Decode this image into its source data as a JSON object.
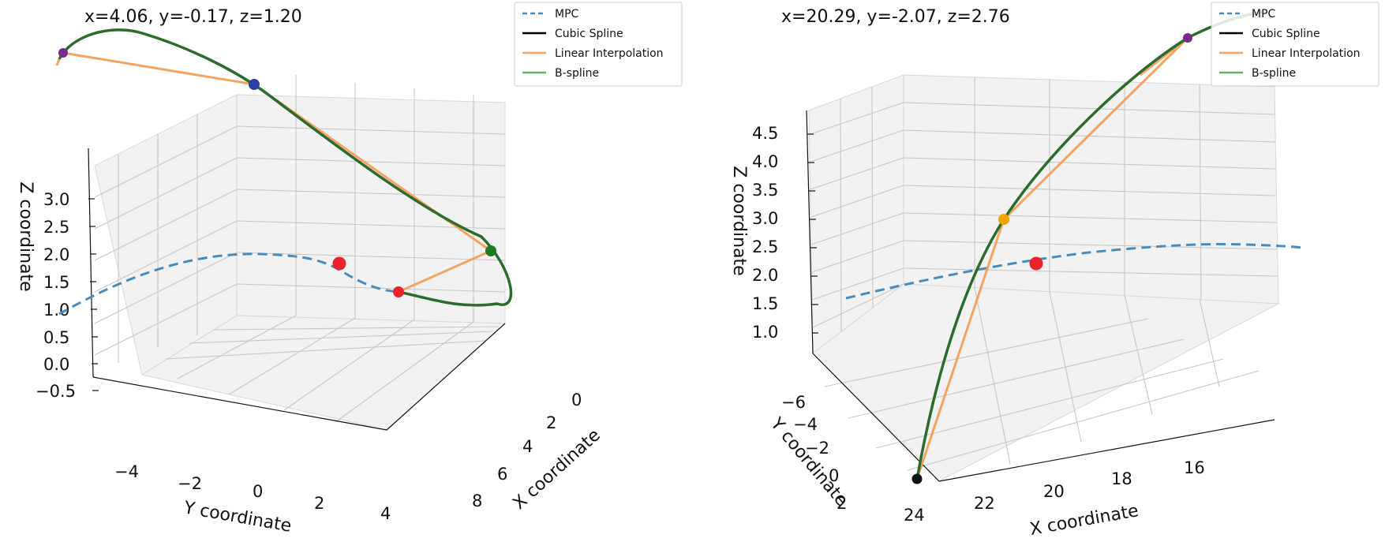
{
  "chart_data": [
    {
      "type": "line-3d",
      "coord_readout": "x=4.06, y=-0.17, z=1.20",
      "xlabel": "X coordinate",
      "ylabel": "Y coordinate",
      "zlabel": "Z coordinate",
      "x_ticks": [
        "0",
        "2",
        "4",
        "6",
        "8"
      ],
      "y_ticks": [
        "−4",
        "−2",
        "0",
        "2",
        "4"
      ],
      "z_ticks": [
        "3.0",
        "2.5",
        "2.0",
        "1.5",
        "1.0",
        "0.5",
        "0.0",
        "−0.5"
      ],
      "grid": true,
      "legend_position": "top-right",
      "legend": [
        {
          "label": "MPC",
          "color": "#4a8bbe",
          "style": "dashed"
        },
        {
          "label": "Cubic Spline",
          "color": "#000000",
          "style": "solid"
        },
        {
          "label": "Linear Interpolation",
          "color": "#f4a460",
          "style": "solid"
        },
        {
          "label": "B-spline",
          "color": "#5cb85c",
          "style": "solid"
        }
      ],
      "waypoints": [
        {
          "name": "start",
          "color": "#e8232a"
        },
        {
          "name": "waypoint-green",
          "color": "#1e7b1e"
        },
        {
          "name": "waypoint-blue",
          "color": "#2c3fa0"
        },
        {
          "name": "waypoint-purple",
          "color": "#7a2a8a"
        }
      ],
      "current_position": {
        "x": 4.06,
        "y": -0.17,
        "z": 1.2,
        "color": "#e8232a"
      }
    },
    {
      "type": "line-3d",
      "coord_readout": "x=20.29, y=-2.07, z=2.76",
      "xlabel": "X coordinate",
      "ylabel": "Y coordinate",
      "zlabel": "Z coordinate",
      "x_ticks": [
        "24",
        "22",
        "20",
        "18",
        "16"
      ],
      "y_ticks": [
        "−6",
        "−4",
        "−2",
        "0",
        "2"
      ],
      "z_ticks": [
        "4.5",
        "4.0",
        "3.5",
        "3.0",
        "2.5",
        "2.0",
        "1.5",
        "1.0"
      ],
      "grid": true,
      "legend_position": "top-right",
      "legend": [
        {
          "label": "MPC",
          "color": "#4a8bbe",
          "style": "dashed"
        },
        {
          "label": "Cubic Spline",
          "color": "#000000",
          "style": "solid"
        },
        {
          "label": "Linear Interpolation",
          "color": "#f4a460",
          "style": "solid"
        },
        {
          "label": "B-spline",
          "color": "#5cb85c",
          "style": "solid"
        }
      ],
      "waypoints": [
        {
          "name": "start",
          "color": "#111111"
        },
        {
          "name": "waypoint-orange",
          "color": "#f0a500"
        },
        {
          "name": "waypoint-purple",
          "color": "#7a2a8a"
        }
      ],
      "current_position": {
        "x": 20.29,
        "y": -2.07,
        "z": 2.76,
        "color": "#e8232a"
      }
    }
  ]
}
